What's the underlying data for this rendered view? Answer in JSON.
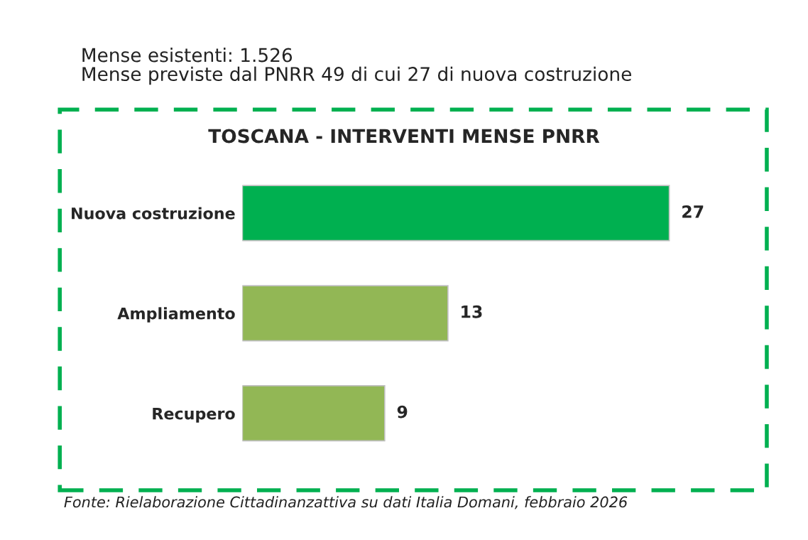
{
  "chart_data": {
    "type": "bar",
    "orientation": "horizontal",
    "title": "TOSCANA - INTERVENTI MENSE PNRR",
    "categories": [
      "Nuova costruzione",
      "Ampliamento",
      "Recupero"
    ],
    "values": [
      27,
      13,
      9
    ],
    "colors": [
      "#00b050",
      "#92b755",
      "#92b755"
    ],
    "data_labels": true,
    "grid": false,
    "legend": false,
    "annotations": [
      "Mense esistenti: 1.526",
      "Mense previste dal PNRR 49 di cui 27 di nuova costruzione",
      "Fonte: Rielaborazione Cittadinanzattiva su dati Italia Domani, febbraio 2026"
    ]
  }
}
